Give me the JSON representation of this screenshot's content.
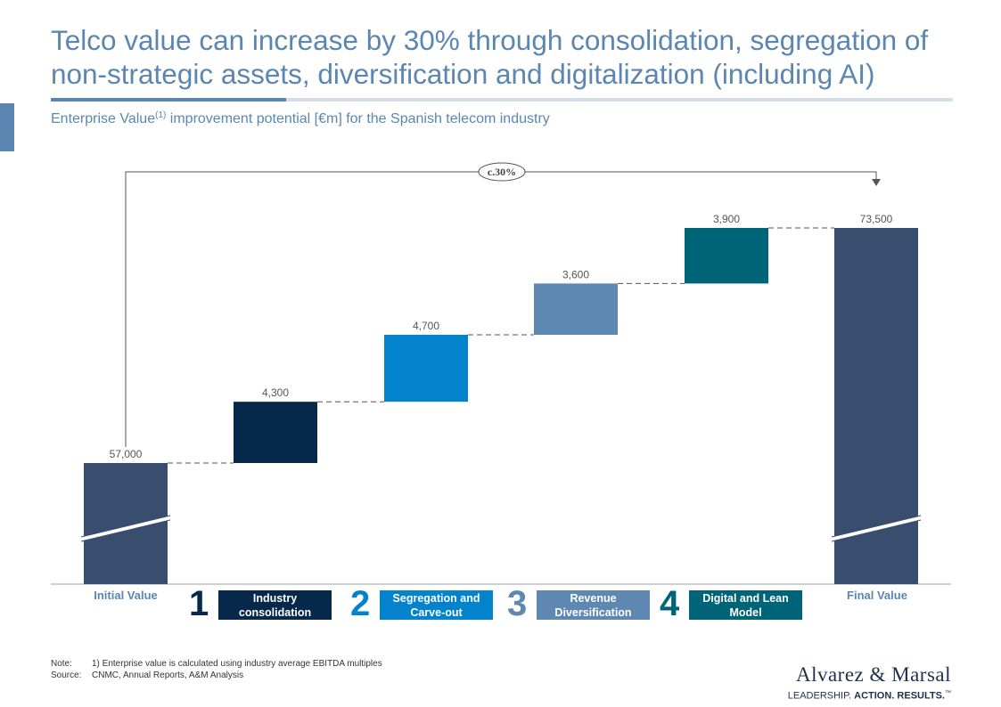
{
  "title": "Telco value can increase by 30% through consolidation, segregation of non-strategic assets, diversification and digitalization (including AI)",
  "subtitle": {
    "pre": "Enterprise Value",
    "sup": "(1)",
    "post": " improvement potential [€m] for the Spanish telecom industry"
  },
  "chart_data": {
    "type": "bar",
    "subtype": "waterfall",
    "categories": [
      "Initial Value",
      "Industry consolidation",
      "Segregation and Carve-out",
      "Revenue Diversification",
      "Digital and Lean Model",
      "Final Value"
    ],
    "values": [
      57000,
      4300,
      4700,
      3600,
      3900,
      73500
    ],
    "value_labels": [
      "57,000",
      "4,300",
      "4,700",
      "3,600",
      "3,900",
      "73,500"
    ],
    "kinds": [
      "total",
      "increment",
      "increment",
      "increment",
      "increment",
      "total"
    ],
    "colors": [
      "#394d6e",
      "#06294b",
      "#0383cc",
      "#5e88b2",
      "#006478",
      "#394d6e"
    ],
    "ylim": [
      48500,
      75000
    ],
    "axis_break": true,
    "annotation": "c.30%",
    "title": "",
    "xlabel": "",
    "ylabel": ""
  },
  "categories": {
    "initial": "Initial Value",
    "final": "Final Value"
  },
  "steps": [
    {
      "number": "1",
      "label": "Industry consolidation",
      "color": "#06294b"
    },
    {
      "number": "2",
      "label": "Segregation and Carve-out",
      "color": "#0383cc"
    },
    {
      "number": "3",
      "label": "Revenue Diversification",
      "color": "#5e88b2"
    },
    {
      "number": "4",
      "label": "Digital and Lean Model",
      "color": "#006478"
    }
  ],
  "notes": {
    "note_key": "Note:",
    "note_text": "1) Enterprise value is calculated using industry average EBITDA multiples",
    "source_key": "Source:",
    "source_text": "CNMC,  Annual Reports, A&M Analysis"
  },
  "logo": {
    "name": "Alvarez & Marsal",
    "tag_a": "LEADERSHIP. ",
    "tag_b": "ACTION. RESULTS.",
    "tm": "™"
  }
}
